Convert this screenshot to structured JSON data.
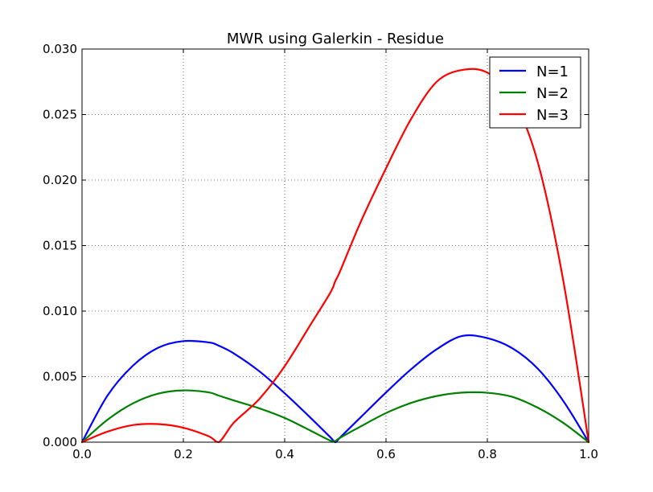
{
  "chart_data": {
    "type": "line",
    "title": "MWR using Galerkin - Residue",
    "xlabel": "",
    "ylabel": "",
    "xlim": [
      0.0,
      1.0
    ],
    "ylim": [
      0.0,
      0.03
    ],
    "grid": true,
    "legend_position": "top-right",
    "x_ticks": [
      "0.0",
      "0.2",
      "0.4",
      "0.6",
      "0.8",
      "1.0"
    ],
    "y_ticks": [
      "0.000",
      "0.005",
      "0.010",
      "0.015",
      "0.020",
      "0.025",
      "0.030"
    ],
    "x": [
      0.0,
      0.05,
      0.1,
      0.15,
      0.2,
      0.25,
      0.27,
      0.3,
      0.35,
      0.4,
      0.45,
      0.49,
      0.5,
      0.51,
      0.55,
      0.6,
      0.65,
      0.7,
      0.75,
      0.8,
      0.85,
      0.9,
      0.95,
      1.0
    ],
    "series": [
      {
        "name": "N=1",
        "color": "#0000ff",
        "values": [
          0.0,
          0.00354,
          0.00582,
          0.0072,
          0.00771,
          0.00761,
          0.00736,
          0.00676,
          0.00541,
          0.00373,
          0.0019,
          0.00038,
          0.0,
          0.00038,
          0.0019,
          0.00379,
          0.00558,
          0.00709,
          0.0081,
          0.00794,
          0.00715,
          0.00559,
          0.00314,
          0.0
        ]
      },
      {
        "name": "N=2",
        "color": "#008000",
        "values": [
          0.0,
          0.0017,
          0.00295,
          0.0037,
          0.00395,
          0.0038,
          0.00355,
          0.00318,
          0.00258,
          0.00185,
          0.0009,
          0.00012,
          0.0001,
          0.00035,
          0.0012,
          0.00222,
          0.003,
          0.00352,
          0.00378,
          0.00377,
          0.00345,
          0.00262,
          0.00147,
          0.0
        ]
      },
      {
        "name": "N=3",
        "color": "#ff0000",
        "values": [
          0.0,
          0.0008,
          0.0013,
          0.00138,
          0.0011,
          0.00045,
          0.0,
          0.0015,
          0.0033,
          0.0058,
          0.0089,
          0.0114,
          0.0123,
          0.0131,
          0.0168,
          0.0209,
          0.0247,
          0.0275,
          0.0284,
          0.0282,
          0.0263,
          0.0213,
          0.0123,
          0.0
        ]
      }
    ]
  }
}
